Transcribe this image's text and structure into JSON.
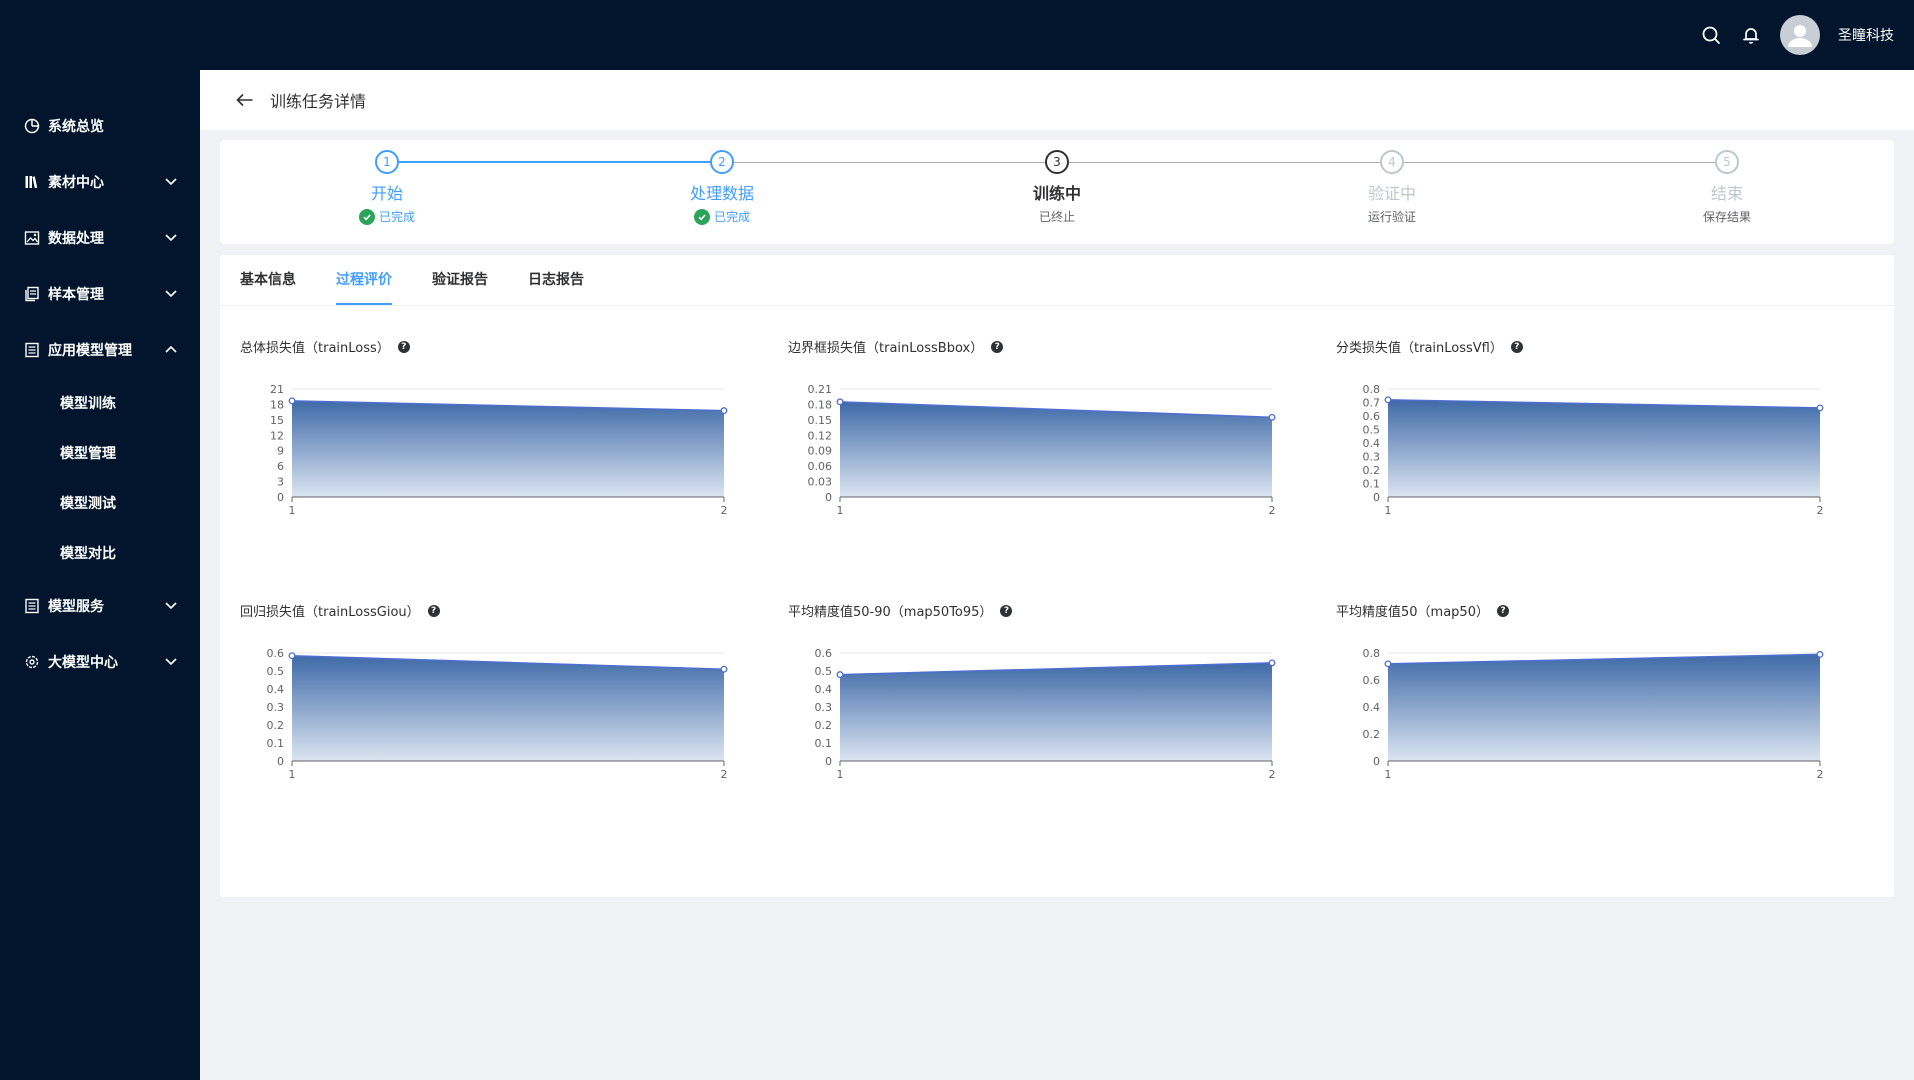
{
  "header": {
    "company": "圣瞳科技",
    "icons": [
      "search-icon",
      "bell-icon",
      "avatar-icon"
    ]
  },
  "sidebar": {
    "items": [
      {
        "label": "系统总览",
        "icon": "pie-chart-icon",
        "chevron": "none"
      },
      {
        "label": "素材中心",
        "icon": "library-icon",
        "chevron": "down"
      },
      {
        "label": "数据处理",
        "icon": "image-icon",
        "chevron": "down"
      },
      {
        "label": "样本管理",
        "icon": "copy-icon",
        "chevron": "down"
      },
      {
        "label": "应用模型管理",
        "icon": "document-icon",
        "chevron": "up",
        "children": [
          "模型训练",
          "模型管理",
          "模型测试",
          "模型对比"
        ]
      },
      {
        "label": "模型服务",
        "icon": "document-icon",
        "chevron": "down"
      },
      {
        "label": "大模型中心",
        "icon": "gear-icon",
        "chevron": "down"
      }
    ]
  },
  "page": {
    "title": "训练任务详情"
  },
  "steps": [
    {
      "number": "1",
      "title": "开始",
      "desc": "已完成",
      "status": "done"
    },
    {
      "number": "2",
      "title": "处理数据",
      "desc": "已完成",
      "status": "done"
    },
    {
      "number": "3",
      "title": "训练中",
      "desc": "已终止",
      "status": "active"
    },
    {
      "number": "4",
      "title": "验证中",
      "desc": "运行验证",
      "status": "pending"
    },
    {
      "number": "5",
      "title": "结束",
      "desc": "保存结果",
      "status": "pending"
    }
  ],
  "tabs": [
    {
      "label": "基本信息",
      "active": false
    },
    {
      "label": "过程评价",
      "active": true
    },
    {
      "label": "验证报告",
      "active": false
    },
    {
      "label": "日志报告",
      "active": false
    }
  ],
  "colors": {
    "accent": "#409eff",
    "sidebar_bg": "#02152c",
    "series_line": "#4e6fd0",
    "area_top": "#3f6aa8",
    "area_bottom": "#dbe5f1",
    "success": "#2ba45b"
  },
  "chart_data": [
    {
      "type": "area",
      "title": "总体损失值（trainLoss）",
      "x": [
        1,
        2
      ],
      "values": [
        18.7,
        16.8
      ],
      "ylim": [
        0,
        21
      ],
      "yticks": [
        "0",
        "3",
        "6",
        "9",
        "12",
        "15",
        "18",
        "21"
      ]
    },
    {
      "type": "area",
      "title": "边界框损失值（trainLossBbox）",
      "x": [
        1,
        2
      ],
      "values": [
        0.185,
        0.155
      ],
      "ylim": [
        0,
        0.21
      ],
      "yticks": [
        "0",
        "0.03",
        "0.06",
        "0.09",
        "0.12",
        "0.15",
        "0.18",
        "0.21"
      ]
    },
    {
      "type": "area",
      "title": "分类损失值（trainLossVfl）",
      "x": [
        1,
        2
      ],
      "values": [
        0.72,
        0.66
      ],
      "ylim": [
        0,
        0.8
      ],
      "yticks": [
        "0",
        "0.1",
        "0.2",
        "0.3",
        "0.4",
        "0.5",
        "0.6",
        "0.7",
        "0.8"
      ]
    },
    {
      "type": "area",
      "title": "回归损失值（trainLossGiou）",
      "x": [
        1,
        2
      ],
      "values": [
        0.585,
        0.51
      ],
      "ylim": [
        0,
        0.6
      ],
      "yticks": [
        "0",
        "0.1",
        "0.2",
        "0.3",
        "0.4",
        "0.5",
        "0.6"
      ]
    },
    {
      "type": "area",
      "title": "平均精度值50-90（map50To95）",
      "x": [
        1,
        2
      ],
      "values": [
        0.48,
        0.545
      ],
      "ylim": [
        0,
        0.6
      ],
      "yticks": [
        "0",
        "0.1",
        "0.2",
        "0.3",
        "0.4",
        "0.5",
        "0.6"
      ]
    },
    {
      "type": "area",
      "title": "平均精度值50（map50）",
      "x": [
        1,
        2
      ],
      "values": [
        0.72,
        0.79
      ],
      "ylim": [
        0,
        0.8
      ],
      "yticks": [
        "0",
        "0.2",
        "0.4",
        "0.6",
        "0.8"
      ]
    }
  ]
}
